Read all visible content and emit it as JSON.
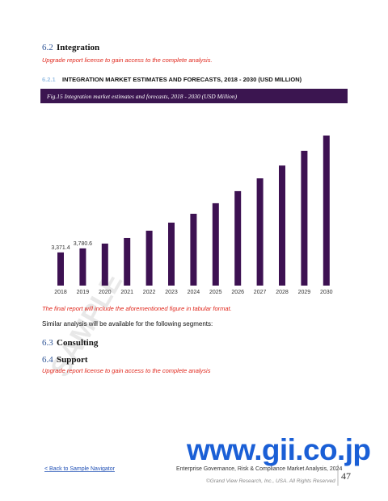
{
  "sections": [
    {
      "number": "6.2",
      "title": "Integration",
      "note": "Upgrade report license to gain access to the complete analysis."
    },
    {
      "number": "6.3",
      "title": "Consulting"
    },
    {
      "number": "6.4",
      "title": "Support",
      "note": "Upgrade report license to gain access to the complete analysis"
    }
  ],
  "subsection": {
    "number": "6.2.1",
    "title": "INTEGRATION MARKET ESTIMATES AND FORECASTS, 2018 - 2030 (USD MILLION)"
  },
  "chart_data": {
    "type": "bar",
    "caption": "Fig.15 Integration market estimates and forecasts, 2018 - 2030 (USD Million)",
    "categories": [
      "2018",
      "2019",
      "2020",
      "2021",
      "2022",
      "2023",
      "2024",
      "2025",
      "2026",
      "2027",
      "2028",
      "2029",
      "2030"
    ],
    "values": [
      3371.4,
      3780.6,
      4270,
      4840,
      5580,
      6400,
      7300,
      8370,
      9600,
      10900,
      12200,
      13700,
      15250
    ],
    "value_labels": [
      "3,371.4",
      "3,780.6",
      null,
      null,
      null,
      null,
      null,
      null,
      null,
      null,
      null,
      null,
      null
    ],
    "color": "#3d1152"
  },
  "after_chart": "The final report will include the aforementioned figure in tabular format.",
  "similar": "Similar analysis will be available for the following segments:",
  "watermark": "www.gii.co.jp",
  "stamp": "SAMPLE",
  "footer": {
    "back_link": "< Back to Sample Navigator",
    "report": "Enterprise Governance, Risk & Compliance Market Analysis, 2024",
    "copyright": "©Grand View Research, Inc., USA. All Rights Reserved",
    "page": "47"
  }
}
